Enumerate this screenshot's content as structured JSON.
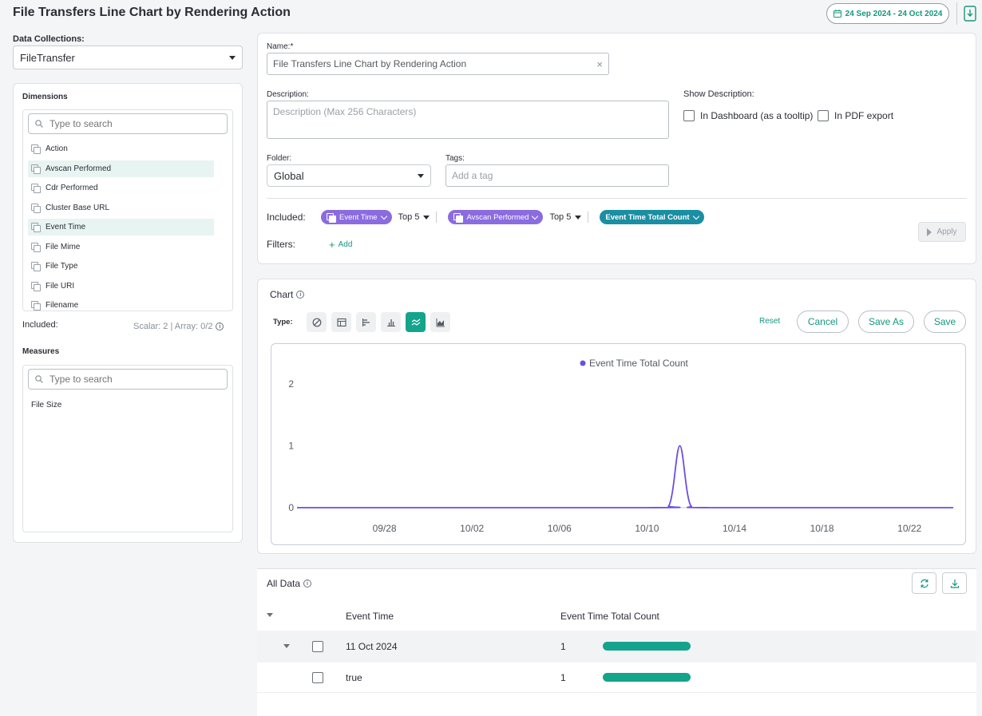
{
  "header": {
    "title": "File Transfers Line Chart by Rendering Action",
    "date_range": "24 Sep 2024 - 24 Oct 2024"
  },
  "sidebar": {
    "data_collections_label": "Data Collections:",
    "data_collection_value": "FileTransfer",
    "dimensions_label": "Dimensions",
    "dimensions_search_placeholder": "Type to search",
    "dimensions": [
      {
        "label": "Action",
        "highlighted": false
      },
      {
        "label": "Avscan Performed",
        "highlighted": true
      },
      {
        "label": "Cdr Performed",
        "highlighted": false
      },
      {
        "label": "Cluster Base URL",
        "highlighted": false
      },
      {
        "label": "Event Time",
        "highlighted": true
      },
      {
        "label": "File Mime",
        "highlighted": false
      },
      {
        "label": "File Type",
        "highlighted": false
      },
      {
        "label": "File URI",
        "highlighted": false
      },
      {
        "label": "Filename",
        "highlighted": false
      }
    ],
    "included_label": "Included:",
    "included_summary": "Scalar: 2 | Array: 0/2",
    "measures_label": "Measures",
    "measures_search_placeholder": "Type to search",
    "measures": [
      "File Size"
    ]
  },
  "form": {
    "name_label": "Name:*",
    "name_value": "File Transfers Line Chart by Rendering Action",
    "description_label": "Description:",
    "description_placeholder": "Description (Max 256 Characters)",
    "show_description_label": "Show Description:",
    "show_in_dashboard_label": "In Dashboard (as a tooltip)",
    "show_in_pdf_label": "In PDF export",
    "folder_label": "Folder:",
    "folder_value": "Global",
    "tags_label": "Tags:",
    "tags_placeholder": "Add a tag",
    "included_label": "Included:",
    "chips": {
      "event_time": "Event Time",
      "event_time_top": "Top 5",
      "avscan": "Avscan Performed",
      "avscan_top": "Top 5",
      "measure": "Event Time Total Count"
    },
    "filters_label": "Filters:",
    "add_filter_label": "Add",
    "apply_label": "Apply"
  },
  "chart_panel": {
    "title": "Chart",
    "type_label": "Type:",
    "reset_label": "Reset",
    "cancel_label": "Cancel",
    "save_as_label": "Save As",
    "save_label": "Save"
  },
  "chart_data": {
    "type": "line",
    "title": "",
    "xlabel": "",
    "ylabel": "",
    "x_range": [
      "2024-09-24",
      "2024-10-24"
    ],
    "x_ticks": [
      "09/28",
      "10/02",
      "10/06",
      "10/10",
      "10/14",
      "10/18",
      "10/22"
    ],
    "y_ticks": [
      0,
      1,
      2
    ],
    "ylim": [
      0,
      2
    ],
    "legend_position": "top-center",
    "series": [
      {
        "name": "Event Time Total Count",
        "color": "#6b4fe0",
        "points": [
          [
            "2024-09-24",
            0
          ],
          [
            "2024-10-10",
            0
          ],
          [
            "2024-10-11",
            0.03
          ],
          [
            "2024-10-11T12:00",
            1
          ],
          [
            "2024-10-12",
            0.03
          ],
          [
            "2024-10-13",
            0
          ],
          [
            "2024-10-24",
            0
          ]
        ]
      }
    ]
  },
  "all_data": {
    "title": "All Data",
    "columns": [
      "Event Time",
      "Event Time Total Count"
    ],
    "rows": [
      {
        "label": "11 Oct 2024",
        "count": "1",
        "fraction": 1
      },
      {
        "label": "true",
        "count": "1",
        "fraction": 1
      }
    ]
  }
}
